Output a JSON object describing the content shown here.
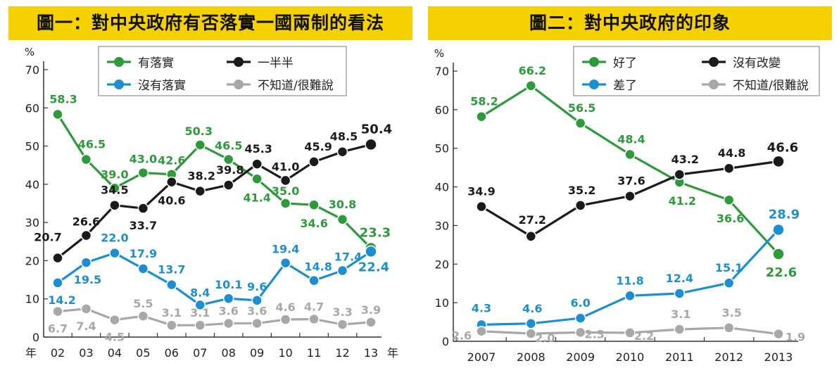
{
  "chart_data": [
    {
      "type": "line",
      "title": "圖一：對中央政府有否落實一國兩制的看法",
      "ylabel": "%",
      "xlabel": "年",
      "ylim": [
        0,
        70
      ],
      "yticks": [
        "0",
        "10",
        "20",
        "30",
        "40",
        "50",
        "60",
        "70"
      ],
      "categories": [
        "02",
        "03",
        "04",
        "05",
        "06",
        "07",
        "08",
        "09",
        "10",
        "11",
        "12",
        "13"
      ],
      "grid": false,
      "legend_position": "top-right",
      "series": [
        {
          "name": "有落實",
          "color": "#2e9a3c",
          "values": [
            58.3,
            46.5,
            39.0,
            43.0,
            42.6,
            50.3,
            46.5,
            41.4,
            35.0,
            34.6,
            30.8,
            23.3
          ],
          "labels": [
            "58.3",
            "46.5",
            "39.0",
            "43.0",
            "42.6",
            "50.3",
            "46.5",
            "41.4",
            "35.0",
            "34.6",
            "30.8",
            "23.3"
          ]
        },
        {
          "name": "一半半",
          "color": "#1a1a1a",
          "values": [
            20.7,
            26.6,
            34.5,
            33.7,
            40.6,
            38.2,
            39.8,
            45.3,
            41.0,
            45.9,
            48.5,
            50.4
          ],
          "labels": [
            "20.7",
            "26.6",
            "34.5",
            "33.7",
            "40.6",
            "38.2",
            "39.8",
            "45.3",
            "41.0",
            "45.9",
            "48.5",
            "50.4"
          ]
        },
        {
          "name": "沒有落實",
          "color": "#1d8fd1",
          "values": [
            14.2,
            19.5,
            22.0,
            17.9,
            13.7,
            8.4,
            10.1,
            9.6,
            19.4,
            14.8,
            17.4,
            22.4
          ],
          "labels": [
            "14.2",
            "19.5",
            "22.0",
            "17.9",
            "13.7",
            "8.4",
            "10.1",
            "9.6",
            "19.4",
            "14.8",
            "17.4",
            "22.4"
          ]
        },
        {
          "name": "不知道/很難說",
          "color": "#a8a8a8",
          "values": [
            6.7,
            7.4,
            4.5,
            5.5,
            3.1,
            3.1,
            3.6,
            3.6,
            4.6,
            4.7,
            3.3,
            3.9
          ],
          "labels": [
            "6.7",
            "7.4",
            "4.5",
            "5.5",
            "3.1",
            "3.1",
            "3.6",
            "3.6",
            "4.6",
            "4.7",
            "3.3",
            "3.9"
          ]
        }
      ]
    },
    {
      "type": "line",
      "title": "圖二：對中央政府的印象",
      "ylabel": "%",
      "xlabel": "",
      "ylim": [
        0,
        70
      ],
      "yticks": [
        "0",
        "10",
        "20",
        "30",
        "40",
        "50",
        "60",
        "70"
      ],
      "categories": [
        "2007",
        "2008",
        "2009",
        "2010",
        "2011",
        "2012",
        "2013"
      ],
      "grid": false,
      "legend_position": "top-right",
      "series": [
        {
          "name": "好了",
          "color": "#2e9a3c",
          "values": [
            58.2,
            66.2,
            56.5,
            48.4,
            41.2,
            36.6,
            22.6
          ],
          "labels": [
            "58.2",
            "66.2",
            "56.5",
            "48.4",
            "41.2",
            "36.6",
            "22.6"
          ]
        },
        {
          "name": "沒有改變",
          "color": "#1a1a1a",
          "values": [
            34.9,
            27.2,
            35.2,
            37.6,
            43.2,
            44.8,
            46.6
          ],
          "labels": [
            "34.9",
            "27.2",
            "35.2",
            "37.6",
            "43.2",
            "44.8",
            "46.6"
          ]
        },
        {
          "name": "差了",
          "color": "#1d8fd1",
          "values": [
            4.3,
            4.6,
            6.0,
            11.8,
            12.4,
            15.1,
            28.9
          ],
          "labels": [
            "4.3",
            "4.6",
            "6.0",
            "11.8",
            "12.4",
            "15.1",
            "28.9"
          ]
        },
        {
          "name": "不知道/很難說",
          "color": "#a8a8a8",
          "values": [
            2.6,
            2.0,
            2.3,
            2.2,
            3.1,
            3.5,
            1.9
          ],
          "labels": [
            "2.6",
            "2.0",
            "2.3",
            "2.2",
            "3.1",
            "3.5",
            "1.9"
          ]
        }
      ]
    }
  ]
}
